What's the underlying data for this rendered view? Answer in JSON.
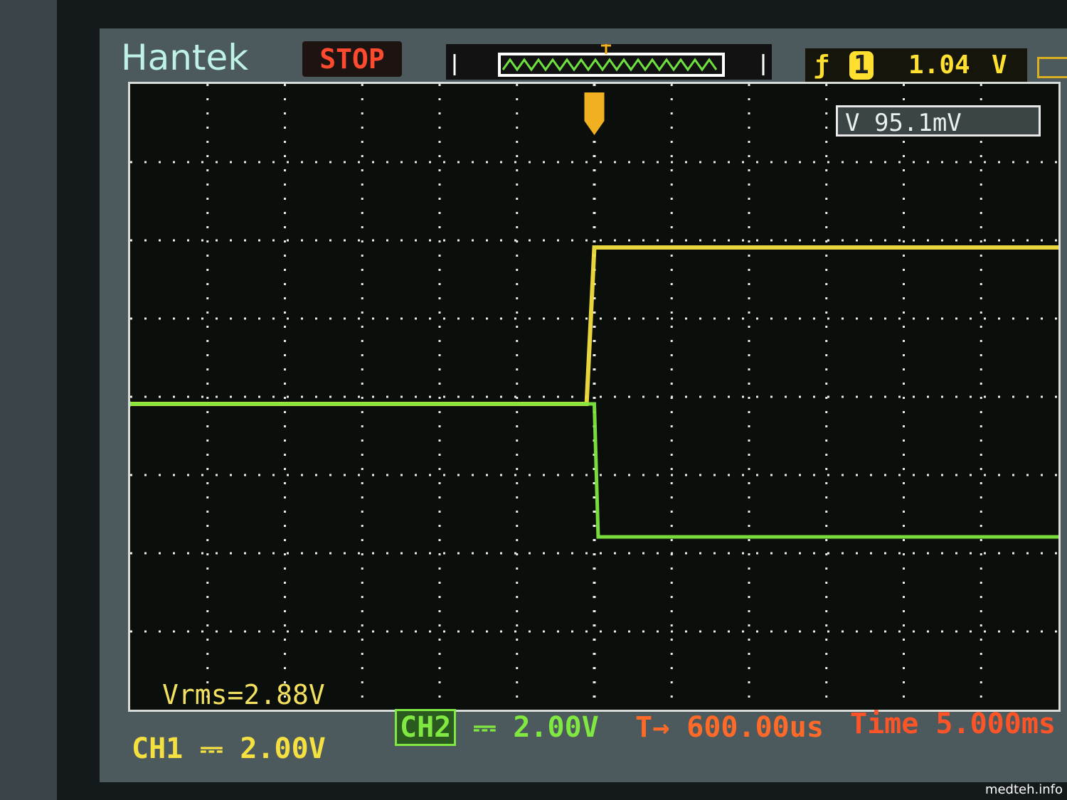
{
  "header": {
    "brand": "Hantek",
    "run_state": "STOP",
    "trigger": {
      "slope_icon": "rising-edge-icon",
      "source": "1",
      "level": "1.04",
      "unit": "V"
    },
    "battery_icon": "battery-icon"
  },
  "measurement_box": "V 95.1mV",
  "vrms": "Vrms=2.88V",
  "footer": {
    "ch1_label": "CH1",
    "ch1_coupling": "⎓",
    "ch1_scale": "2.00V",
    "ch2_label": "CH2",
    "ch2_coupling": "⎓",
    "ch2_scale": "2.00V",
    "trigger_pos_icon": "T→",
    "trigger_pos": "600.00us",
    "time_label": "Time",
    "time_scale": "5.000ms"
  },
  "watermark": "medteh.info",
  "colors": {
    "ch1": "#f4e040",
    "ch2": "#80e840",
    "grid": "#e8ece8",
    "trigger_marker": "#f0b020"
  },
  "chart_data": {
    "type": "line",
    "grid": {
      "h_divisions": 12,
      "v_divisions": 8
    },
    "x_unit": "div",
    "y_unit": "V",
    "series": [
      {
        "name": "CH1",
        "x": [
          -6,
          -0.1,
          0,
          6
        ],
        "y": [
          0,
          0,
          4.0,
          4.0
        ]
      },
      {
        "name": "CH2",
        "x": [
          -6,
          0,
          0.05,
          6
        ],
        "y": [
          0,
          0,
          -3.4,
          -3.4
        ]
      }
    ]
  }
}
